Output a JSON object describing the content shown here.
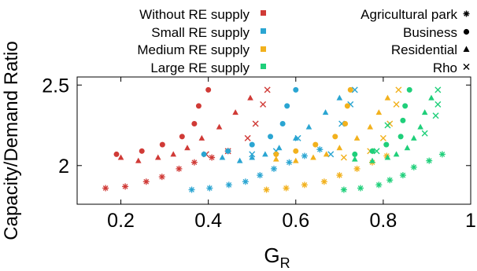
{
  "chart_data": {
    "type": "scatter",
    "xlabel": "G",
    "xlabel_sub": "R",
    "ylabel": "Capacity/Demand Ratio",
    "xlim": [
      0.1,
      1.0
    ],
    "ylim": [
      1.76,
      2.55
    ],
    "x_ticks": [
      0.2,
      0.4,
      0.6,
      0.8,
      1.0
    ],
    "x_tick_labels": [
      "0.2",
      "0.4",
      "0.6",
      "0.8",
      "1"
    ],
    "y_ticks": [
      2.0,
      2.5
    ],
    "y_tick_labels": [
      "2",
      "2.5"
    ],
    "grid": false,
    "legend_placement": "top",
    "color_legend": [
      {
        "label": "Without RE supply",
        "color": "#d03a36"
      },
      {
        "label": "Small RE supply",
        "color": "#2aa5d2"
      },
      {
        "label": "Medium RE supply",
        "color": "#f2b11d"
      },
      {
        "label": "Large RE supply",
        "color": "#1fcf7a"
      }
    ],
    "shape_legend": [
      {
        "label": "Agricultural park",
        "marker": "asterisk"
      },
      {
        "label": "Business",
        "marker": "circle"
      },
      {
        "label": "Residential",
        "marker": "triangle"
      },
      {
        "label": "Rho",
        "marker": "cross"
      }
    ],
    "series": [
      {
        "supply": "Without RE supply",
        "building": "Agricultural park",
        "points": [
          [
            0.165,
            1.86
          ],
          [
            0.21,
            1.87
          ],
          [
            0.258,
            1.9
          ],
          [
            0.294,
            1.93
          ],
          [
            0.333,
            1.98
          ],
          [
            0.368,
            2.02
          ],
          [
            0.408,
            2.05
          ],
          [
            0.445,
            2.09
          ]
        ]
      },
      {
        "supply": "Without RE supply",
        "building": "Business",
        "points": [
          [
            0.19,
            2.07
          ],
          [
            0.248,
            2.09
          ],
          [
            0.295,
            2.13
          ],
          [
            0.34,
            2.18
          ],
          [
            0.368,
            2.26
          ],
          [
            0.378,
            2.37
          ],
          [
            0.4,
            2.47
          ]
        ]
      },
      {
        "supply": "Without RE supply",
        "building": "Residential",
        "points": [
          [
            0.2,
            2.05
          ],
          [
            0.24,
            2.03
          ],
          [
            0.285,
            2.05
          ],
          [
            0.32,
            2.07
          ],
          [
            0.352,
            2.11
          ],
          [
            0.385,
            2.17
          ],
          [
            0.425,
            2.24
          ],
          [
            0.462,
            2.33
          ],
          [
            0.496,
            2.42
          ]
        ]
      },
      {
        "supply": "Without RE supply",
        "building": "Rho",
        "points": [
          [
            0.395,
            2.07
          ],
          [
            0.445,
            2.09
          ],
          [
            0.49,
            2.17
          ],
          [
            0.508,
            2.26
          ],
          [
            0.525,
            2.38
          ],
          [
            0.535,
            2.47
          ]
        ]
      },
      {
        "supply": "Small RE supply",
        "building": "Agricultural park",
        "points": [
          [
            0.362,
            1.85
          ],
          [
            0.403,
            1.86
          ],
          [
            0.447,
            1.88
          ],
          [
            0.485,
            1.9
          ],
          [
            0.518,
            1.94
          ],
          [
            0.55,
            1.98
          ],
          [
            0.585,
            2.02
          ],
          [
            0.62,
            2.06
          ],
          [
            0.655,
            2.1
          ]
        ]
      },
      {
        "supply": "Small RE supply",
        "building": "Business",
        "points": [
          [
            0.39,
            2.07
          ],
          [
            0.445,
            2.09
          ],
          [
            0.5,
            2.13
          ],
          [
            0.542,
            2.18
          ],
          [
            0.57,
            2.26
          ],
          [
            0.58,
            2.37
          ],
          [
            0.6,
            2.47
          ]
        ]
      },
      {
        "supply": "Small RE supply",
        "building": "Residential",
        "points": [
          [
            0.432,
            2.05
          ],
          [
            0.472,
            2.03
          ],
          [
            0.5,
            2.05
          ],
          [
            0.53,
            2.07
          ],
          [
            0.562,
            2.11
          ],
          [
            0.6,
            2.17
          ],
          [
            0.63,
            2.24
          ],
          [
            0.668,
            2.33
          ],
          [
            0.7,
            2.42
          ]
        ]
      },
      {
        "supply": "Small RE supply",
        "building": "Rho",
        "points": [
          [
            0.5,
            2.07
          ],
          [
            0.555,
            2.09
          ],
          [
            0.605,
            2.17
          ],
          [
            0.68,
            2.07
          ],
          [
            0.705,
            2.26
          ],
          [
            0.725,
            2.38
          ],
          [
            0.735,
            2.47
          ]
        ]
      },
      {
        "supply": "Medium RE supply",
        "building": "Agricultural park",
        "points": [
          [
            0.533,
            1.85
          ],
          [
            0.578,
            1.86
          ],
          [
            0.62,
            1.88
          ],
          [
            0.665,
            1.9
          ],
          [
            0.7,
            1.94
          ],
          [
            0.74,
            1.98
          ],
          [
            0.775,
            2.02
          ],
          [
            0.808,
            2.06
          ]
        ]
      },
      {
        "supply": "Medium RE supply",
        "building": "Business",
        "points": [
          [
            0.555,
            2.07
          ],
          [
            0.6,
            2.09
          ],
          [
            0.645,
            2.13
          ],
          [
            0.69,
            2.18
          ],
          [
            0.713,
            2.26
          ],
          [
            0.718,
            2.37
          ],
          [
            0.725,
            2.47
          ]
        ]
      },
      {
        "supply": "Medium RE supply",
        "building": "Residential",
        "points": [
          [
            0.555,
            2.04
          ],
          [
            0.6,
            2.03
          ],
          [
            0.64,
            2.05
          ],
          [
            0.67,
            2.07
          ],
          [
            0.7,
            2.11
          ],
          [
            0.74,
            2.17
          ],
          [
            0.77,
            2.24
          ],
          [
            0.79,
            2.33
          ],
          [
            0.81,
            2.42
          ]
        ]
      },
      {
        "supply": "Medium RE supply",
        "building": "Rho",
        "points": [
          [
            0.71,
            2.05
          ],
          [
            0.77,
            2.09
          ],
          [
            0.8,
            2.17
          ],
          [
            0.815,
            2.26
          ],
          [
            0.83,
            2.38
          ],
          [
            0.835,
            2.47
          ]
        ]
      },
      {
        "supply": "Large RE supply",
        "building": "Agricultural park",
        "points": [
          [
            0.71,
            1.85
          ],
          [
            0.748,
            1.86
          ],
          [
            0.79,
            1.88
          ],
          [
            0.815,
            1.91
          ],
          [
            0.845,
            1.94
          ],
          [
            0.87,
            1.99
          ],
          [
            0.905,
            2.03
          ],
          [
            0.935,
            2.07
          ]
        ]
      },
      {
        "supply": "Large RE supply",
        "building": "Business",
        "points": [
          [
            0.735,
            2.07
          ],
          [
            0.775,
            2.09
          ],
          [
            0.807,
            2.13
          ],
          [
            0.84,
            2.18
          ],
          [
            0.845,
            2.28
          ],
          [
            0.85,
            2.37
          ],
          [
            0.86,
            2.47
          ]
        ]
      },
      {
        "supply": "Large RE supply",
        "building": "Residential",
        "points": [
          [
            0.735,
            2.04
          ],
          [
            0.775,
            2.03
          ],
          [
            0.81,
            2.05
          ],
          [
            0.83,
            2.07
          ],
          [
            0.855,
            2.11
          ],
          [
            0.87,
            2.17
          ],
          [
            0.885,
            2.24
          ],
          [
            0.895,
            2.33
          ],
          [
            0.91,
            2.42
          ]
        ]
      },
      {
        "supply": "Large RE supply",
        "building": "Rho",
        "points": [
          [
            0.785,
            2.09
          ],
          [
            0.81,
            2.25
          ],
          [
            0.895,
            2.2
          ],
          [
            0.92,
            2.31
          ],
          [
            0.925,
            2.38
          ],
          [
            0.925,
            2.47
          ]
        ]
      }
    ]
  }
}
